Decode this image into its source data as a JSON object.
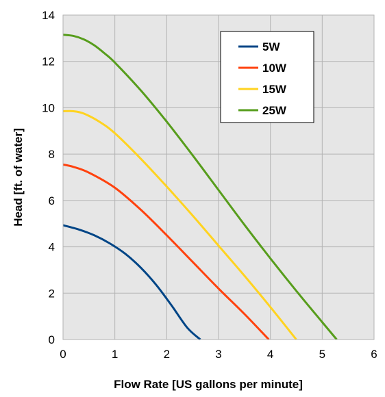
{
  "chart_data": {
    "type": "line",
    "xlabel": "Flow Rate [US gallons per minute]",
    "ylabel": "Head [ft. of water]",
    "xlim": [
      0,
      6
    ],
    "ylim": [
      0,
      14
    ],
    "xticks": [
      0,
      1,
      2,
      3,
      4,
      5,
      6
    ],
    "yticks": [
      0,
      2,
      4,
      6,
      8,
      10,
      12,
      14
    ],
    "grid": true,
    "legend_position": "top-right",
    "series": [
      {
        "name": "5W",
        "color": "#004586",
        "x": [
          0,
          0.3,
          0.6,
          0.9,
          1.2,
          1.5,
          1.8,
          2.1,
          2.4,
          2.65
        ],
        "y": [
          4.93,
          4.75,
          4.5,
          4.15,
          3.7,
          3.1,
          2.35,
          1.45,
          0.5,
          0
        ]
      },
      {
        "name": "10W",
        "color": "#ff420e",
        "x": [
          0,
          0.2,
          0.5,
          1.0,
          1.5,
          2.0,
          2.5,
          3.0,
          3.5,
          3.97
        ],
        "y": [
          7.55,
          7.45,
          7.2,
          6.55,
          5.6,
          4.5,
          3.35,
          2.2,
          1.1,
          0
        ]
      },
      {
        "name": "15W",
        "color": "#ffd320",
        "x": [
          0,
          0.2,
          0.4,
          0.7,
          1.0,
          1.5,
          2.0,
          2.5,
          3.0,
          3.5,
          4.0,
          4.5
        ],
        "y": [
          9.85,
          9.85,
          9.75,
          9.4,
          8.9,
          7.8,
          6.6,
          5.35,
          4.05,
          2.75,
          1.4,
          0
        ]
      },
      {
        "name": "25W",
        "color": "#579d1c",
        "x": [
          0,
          0.2,
          0.4,
          0.6,
          0.8,
          1.0,
          1.5,
          2.0,
          2.5,
          3.0,
          3.5,
          4.0,
          4.5,
          5.0,
          5.28
        ],
        "y": [
          13.15,
          13.1,
          12.95,
          12.7,
          12.35,
          11.95,
          10.75,
          9.4,
          7.95,
          6.45,
          4.95,
          3.5,
          2.1,
          0.75,
          0
        ]
      }
    ]
  }
}
